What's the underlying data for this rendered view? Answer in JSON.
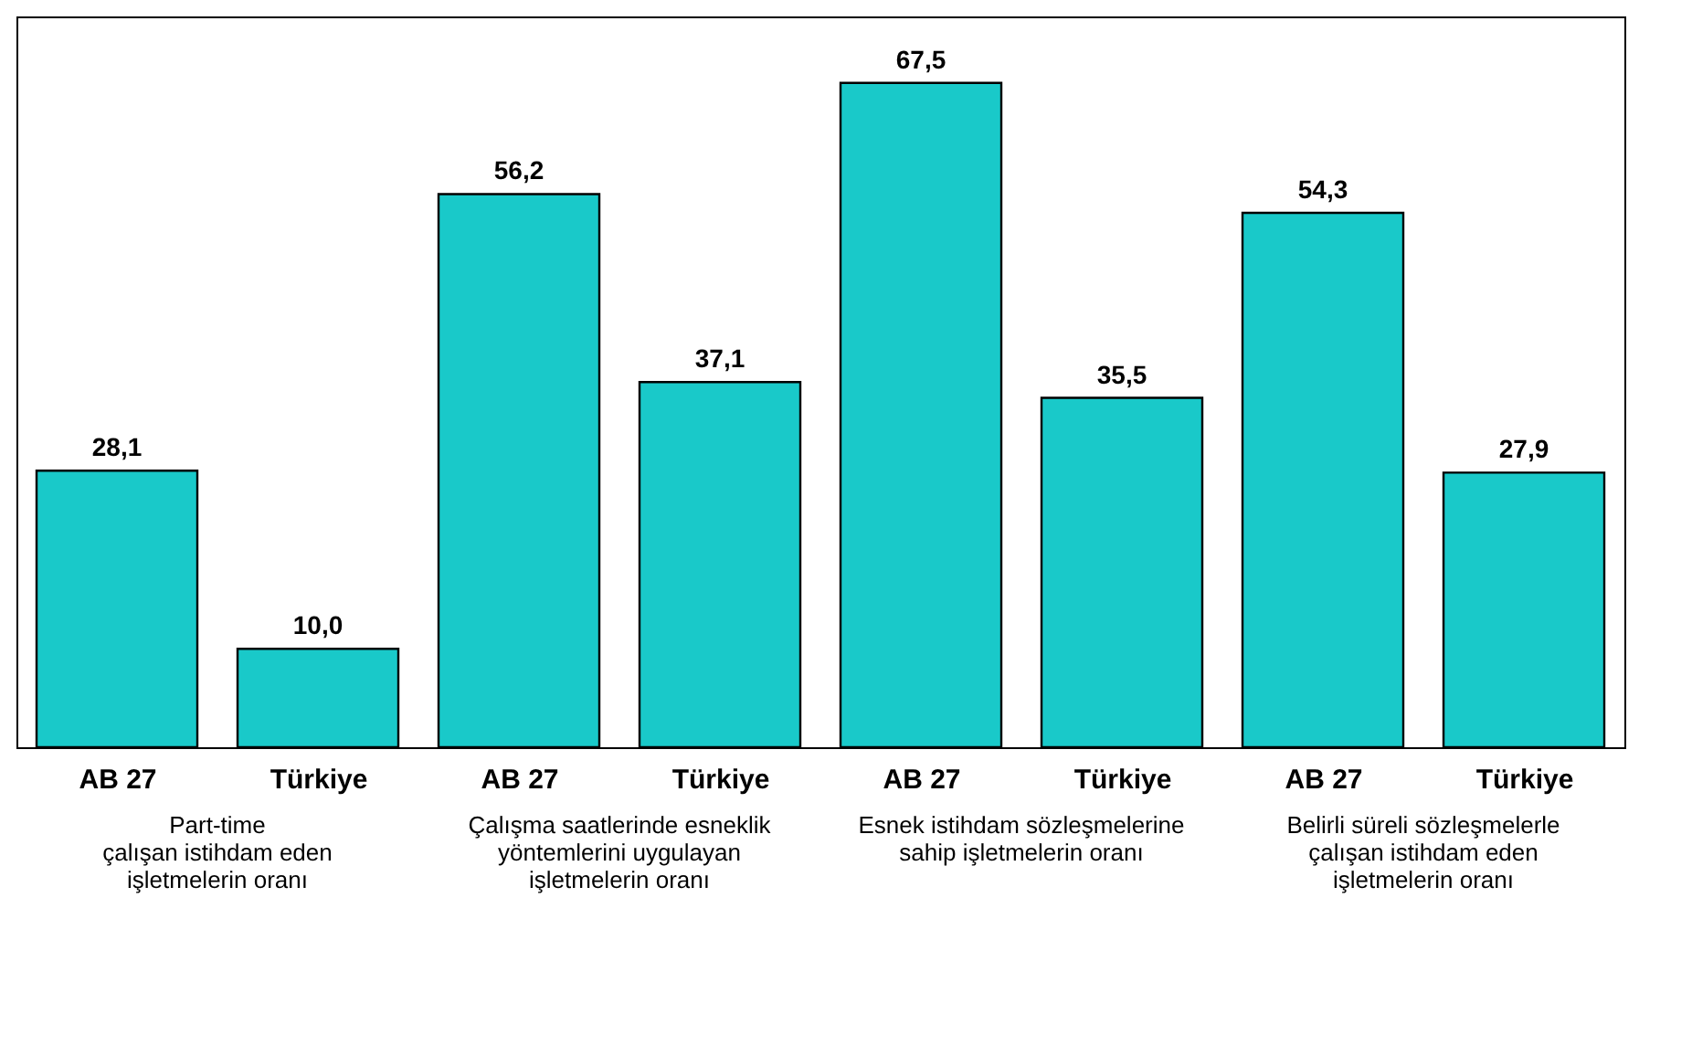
{
  "chart_data": {
    "type": "bar",
    "categories": [
      "AB 27",
      "Türkiye",
      "AB 27",
      "Türkiye",
      "AB 27",
      "Türkiye",
      "AB 27",
      "Türkiye"
    ],
    "values": [
      28.1,
      10.0,
      56.2,
      37.1,
      67.5,
      35.5,
      54.3,
      27.9
    ],
    "value_labels": [
      "28,1",
      "10,0",
      "56,2",
      "37,1",
      "67,5",
      "35,5",
      "54,3",
      "27,9"
    ],
    "color": "#19c9c9",
    "annotations": [
      "Part-time\nçalışan istihdam eden\nişletmelerin oranı",
      "Çalışma saatlerinde esneklik\nyöntemlerini uygulayan\nişletmelerin oranı",
      "Esnek istihdam sözleşmelerine\nsahip işletmelerin oranı",
      "Belirli süreli sözleşmelerle\nçalışan istihdam eden\nişletmelerin oranı"
    ]
  }
}
